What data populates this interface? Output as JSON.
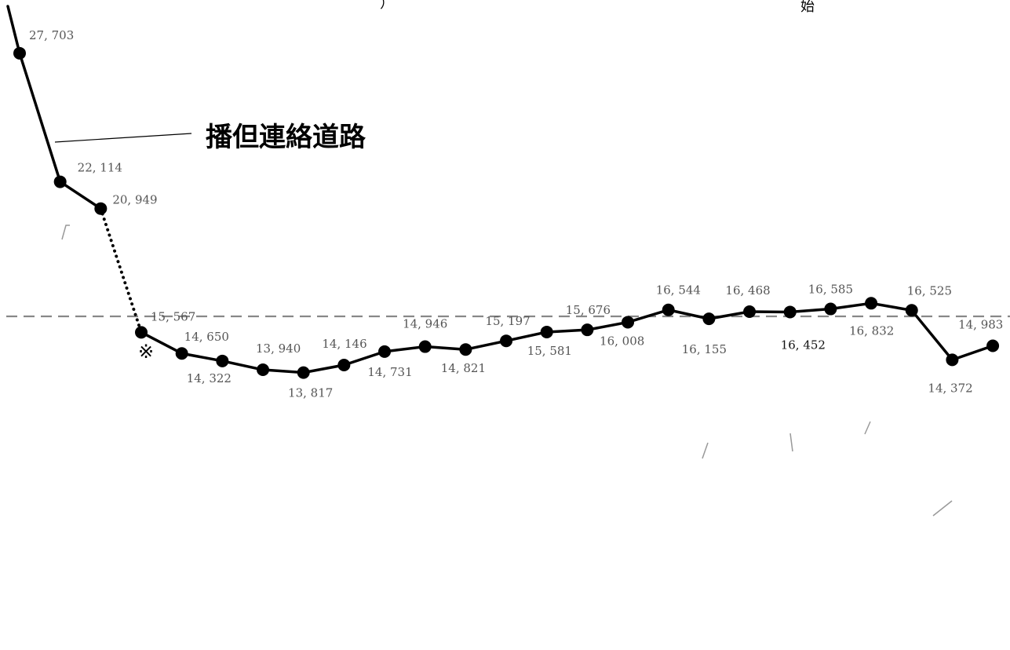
{
  "chart_data": {
    "type": "line",
    "title": "",
    "xlabel": "",
    "ylabel": "",
    "ylim": [
      8000,
      29500
    ],
    "grid": false,
    "series": [
      {
        "name": "播但連絡道路",
        "values": [
          27703,
          22114,
          20949,
          15567,
          14650,
          14322,
          13940,
          13817,
          14146,
          14731,
          14946,
          14821,
          15197,
          15581,
          15676,
          16008,
          16544,
          16155,
          16468,
          16452,
          16585,
          16832,
          16525,
          14372,
          14983
        ],
        "labels": [
          "27, 703",
          "22, 114",
          "20, 949",
          "15, 567",
          "14, 650",
          "14, 322",
          "13, 940",
          "13, 817",
          "14, 146",
          "14, 731",
          "14, 946",
          "14, 821",
          "15, 197",
          "15, 581",
          "15, 676",
          "16, 008",
          "16, 544",
          "16, 155",
          "16, 468",
          "16, 452",
          "16, 585",
          "16, 832",
          "16, 525",
          "14, 372",
          "14, 983"
        ],
        "dotted_segment_between_points": [
          2,
          3
        ],
        "color": "#000000"
      }
    ],
    "reference_line": {
      "style": "dashed",
      "color": "#888888"
    },
    "annotations": {
      "note_mark": "※",
      "top_fragment_right": "始",
      "top_fragment_left": "）"
    }
  }
}
